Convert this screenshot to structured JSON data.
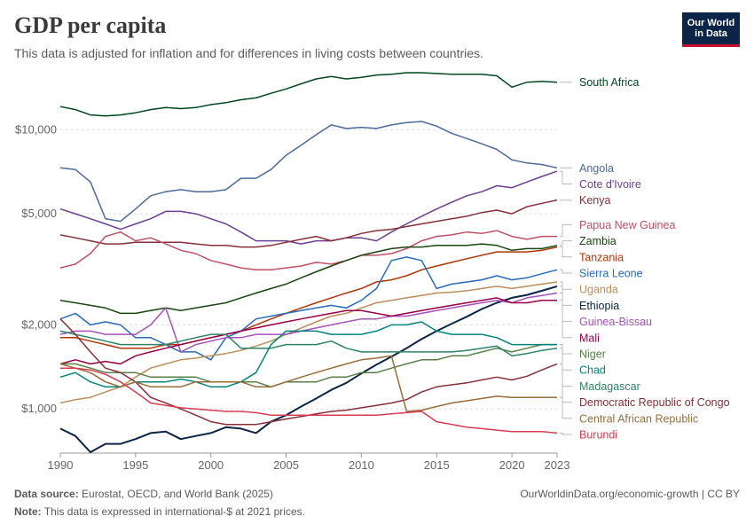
{
  "header": {
    "title": "GDP per capita",
    "subtitle": "This data is adjusted for inflation and for differences in living costs between countries.",
    "logo_line1": "Our World",
    "logo_line2": "in Data"
  },
  "footer": {
    "source_label": "Data source:",
    "source_text": "Eurostat, OECD, and World Bank (2025)",
    "note_label": "Note:",
    "note_text": "This data is expressed in international-$ at 2021 prices.",
    "credit": "OurWorldinData.org/economic-growth | CC BY"
  },
  "chart_data": {
    "type": "line",
    "title": "GDP per capita",
    "y_scale": "log",
    "ylim": [
      700,
      16000
    ],
    "xlim": [
      1990,
      2023
    ],
    "y_ticks": [
      1000,
      2000,
      5000,
      10000
    ],
    "y_tick_labels": [
      "$1,000",
      "$2,000",
      "$5,000",
      "$10,000"
    ],
    "x_ticks": [
      1990,
      1995,
      2000,
      2005,
      2010,
      2015,
      2020,
      2023
    ],
    "x_tick_labels": [
      "1990",
      "1995",
      "2000",
      "2005",
      "2010",
      "2015",
      "2020",
      "2023"
    ],
    "grid": "horizontal-dashed",
    "legend": "right-labels",
    "x": [
      1990,
      1991,
      1992,
      1993,
      1994,
      1995,
      1996,
      1997,
      1998,
      1999,
      2000,
      2001,
      2002,
      2003,
      2004,
      2005,
      2006,
      2007,
      2008,
      2009,
      2010,
      2011,
      2012,
      2013,
      2014,
      2015,
      2016,
      2017,
      2018,
      2019,
      2020,
      2021,
      2022,
      2023
    ],
    "series": [
      {
        "name": "South Africa",
        "color": "#00471f",
        "values": [
          12100,
          11800,
          11300,
          11200,
          11300,
          11500,
          11800,
          12000,
          11900,
          12000,
          12300,
          12500,
          12800,
          13000,
          13500,
          14000,
          14600,
          15200,
          15500,
          15200,
          15400,
          15700,
          15800,
          16000,
          16000,
          15900,
          15800,
          15800,
          15800,
          15600,
          14200,
          14800,
          14900,
          14800
        ]
      },
      {
        "name": "Angola",
        "color": "#4c6a9c",
        "values": [
          7300,
          7200,
          6500,
          4800,
          4700,
          5200,
          5800,
          6000,
          6100,
          6000,
          6000,
          6100,
          6700,
          6700,
          7200,
          8100,
          8800,
          9600,
          10400,
          10100,
          10200,
          10100,
          10400,
          10600,
          10700,
          10300,
          9700,
          9300,
          8900,
          8500,
          7800,
          7600,
          7500,
          7300
        ]
      },
      {
        "name": "Cote d'Ivoire",
        "color": "#6d3e91",
        "values": [
          5200,
          5000,
          4800,
          4600,
          4400,
          4600,
          4800,
          5100,
          5100,
          5000,
          4800,
          4600,
          4300,
          4000,
          4000,
          4000,
          3900,
          4000,
          4000,
          4100,
          4100,
          4000,
          4300,
          4600,
          4900,
          5200,
          5500,
          5800,
          6000,
          6300,
          6200,
          6500,
          6800,
          7100
        ]
      },
      {
        "name": "Kenya",
        "color": "#883039",
        "values": [
          4200,
          4100,
          4000,
          3900,
          3900,
          3950,
          3950,
          3950,
          3950,
          3900,
          3850,
          3850,
          3800,
          3800,
          3850,
          3950,
          4050,
          4150,
          4000,
          4100,
          4250,
          4350,
          4400,
          4500,
          4600,
          4700,
          4800,
          4900,
          5050,
          5150,
          5000,
          5300,
          5450,
          5600
        ]
      },
      {
        "name": "Papua New Guinea",
        "color": "#c15065",
        "values": [
          3200,
          3300,
          3600,
          4150,
          4300,
          4000,
          4100,
          3900,
          3700,
          3600,
          3400,
          3300,
          3200,
          3150,
          3150,
          3200,
          3250,
          3350,
          3300,
          3400,
          3550,
          3550,
          3600,
          3750,
          4000,
          4150,
          4200,
          4300,
          4250,
          4350,
          4150,
          4050,
          4150,
          4150
        ]
      },
      {
        "name": "Zambia",
        "color": "#18470f",
        "values": [
          2450,
          2400,
          2350,
          2300,
          2200,
          2200,
          2250,
          2300,
          2250,
          2300,
          2350,
          2400,
          2500,
          2600,
          2700,
          2800,
          2950,
          3100,
          3250,
          3400,
          3550,
          3650,
          3750,
          3800,
          3800,
          3850,
          3850,
          3850,
          3900,
          3850,
          3700,
          3750,
          3750,
          3850
        ]
      },
      {
        "name": "Tanzania",
        "color": "#b13507",
        "values": [
          1800,
          1800,
          1750,
          1700,
          1650,
          1650,
          1650,
          1700,
          1700,
          1750,
          1800,
          1850,
          1900,
          2000,
          2100,
          2200,
          2300,
          2400,
          2500,
          2600,
          2700,
          2850,
          2900,
          3000,
          3150,
          3250,
          3350,
          3450,
          3550,
          3650,
          3650,
          3650,
          3700,
          3800
        ]
      },
      {
        "name": "Sierra Leone",
        "color": "#286bbb",
        "values": [
          2100,
          2200,
          2000,
          2050,
          2000,
          1800,
          1800,
          1700,
          1600,
          1600,
          1500,
          1800,
          1900,
          2100,
          2150,
          2200,
          2250,
          2300,
          2350,
          2300,
          2450,
          2700,
          3400,
          3500,
          3400,
          2700,
          2800,
          2850,
          2900,
          3000,
          2900,
          2950,
          3050,
          3150
        ]
      },
      {
        "name": "Uganda",
        "color": "#bc8e5a",
        "values": [
          1050,
          1080,
          1100,
          1150,
          1200,
          1300,
          1400,
          1450,
          1500,
          1520,
          1550,
          1580,
          1620,
          1680,
          1750,
          1850,
          1950,
          2050,
          2150,
          2200,
          2300,
          2400,
          2450,
          2500,
          2550,
          2600,
          2620,
          2650,
          2700,
          2750,
          2700,
          2750,
          2800,
          2850
        ]
      },
      {
        "name": "Ethiopia",
        "color": "#0b2447",
        "values": [
          850,
          800,
          700,
          750,
          750,
          780,
          820,
          830,
          780,
          800,
          820,
          860,
          850,
          820,
          900,
          950,
          1020,
          1090,
          1170,
          1240,
          1340,
          1440,
          1540,
          1650,
          1780,
          1900,
          2020,
          2140,
          2280,
          2400,
          2500,
          2560,
          2650,
          2750
        ]
      },
      {
        "name": "Guinea-Bissau",
        "color": "#a652ba",
        "values": [
          1850,
          1900,
          1900,
          1850,
          1850,
          1850,
          2000,
          2300,
          1600,
          1700,
          1750,
          1800,
          1800,
          1850,
          1850,
          1850,
          1900,
          1950,
          2000,
          2050,
          2100,
          2100,
          2150,
          2150,
          2200,
          2250,
          2300,
          2350,
          2400,
          2450,
          2400,
          2500,
          2550,
          2600
        ]
      },
      {
        "name": "Mali",
        "color": "#970046",
        "values": [
          1450,
          1500,
          1450,
          1480,
          1450,
          1550,
          1600,
          1650,
          1700,
          1750,
          1800,
          1850,
          1900,
          1950,
          2000,
          2050,
          2100,
          2150,
          2200,
          2250,
          2250,
          2200,
          2150,
          2200,
          2250,
          2300,
          2350,
          2400,
          2450,
          2500,
          2400,
          2400,
          2450,
          2450
        ]
      },
      {
        "name": "Niger",
        "color": "#578145",
        "values": [
          1450,
          1450,
          1400,
          1350,
          1350,
          1350,
          1300,
          1300,
          1300,
          1300,
          1250,
          1250,
          1250,
          1250,
          1200,
          1250,
          1250,
          1250,
          1300,
          1300,
          1350,
          1350,
          1400,
          1450,
          1500,
          1500,
          1550,
          1550,
          1600,
          1650,
          1600,
          1650,
          1700,
          1700
        ]
      },
      {
        "name": "Chad",
        "color": "#00847e",
        "values": [
          1300,
          1350,
          1250,
          1200,
          1200,
          1250,
          1250,
          1250,
          1280,
          1250,
          1200,
          1200,
          1250,
          1350,
          1700,
          1900,
          1900,
          1900,
          1850,
          1850,
          1850,
          1900,
          2000,
          2000,
          2050,
          1900,
          1850,
          1850,
          1850,
          1800,
          1700,
          1700,
          1700,
          1700
        ]
      },
      {
        "name": "Madagascar",
        "color": "#2c8465",
        "values": [
          1900,
          1850,
          1800,
          1750,
          1700,
          1700,
          1700,
          1700,
          1750,
          1800,
          1850,
          1850,
          1650,
          1650,
          1650,
          1700,
          1700,
          1700,
          1750,
          1650,
          1600,
          1600,
          1600,
          1600,
          1600,
          1600,
          1600,
          1620,
          1650,
          1680,
          1550,
          1580,
          1620,
          1650
        ]
      },
      {
        "name": "Democratic Republic of Congo",
        "color": "#883039",
        "values": [
          2100,
          1850,
          1600,
          1400,
          1350,
          1250,
          1100,
          1050,
          1000,
          950,
          900,
          880,
          880,
          880,
          900,
          920,
          940,
          960,
          980,
          990,
          1010,
          1030,
          1050,
          1080,
          1150,
          1200,
          1220,
          1240,
          1270,
          1300,
          1270,
          1310,
          1380,
          1450
        ]
      },
      {
        "name": "Central African Republic",
        "color": "#996d39",
        "values": [
          1450,
          1400,
          1350,
          1250,
          1200,
          1250,
          1200,
          1200,
          1200,
          1250,
          1250,
          1250,
          1250,
          1200,
          1200,
          1250,
          1300,
          1350,
          1400,
          1450,
          1500,
          1520,
          1550,
          980,
          990,
          1020,
          1050,
          1070,
          1090,
          1110,
          1100,
          1100,
          1100,
          1100
        ]
      },
      {
        "name": "Burundi",
        "color": "#d73c50",
        "values": [
          1400,
          1400,
          1380,
          1330,
          1250,
          1150,
          1050,
          1030,
          1010,
          1000,
          990,
          980,
          980,
          970,
          950,
          950,
          950,
          950,
          950,
          950,
          950,
          950,
          960,
          970,
          980,
          900,
          880,
          860,
          850,
          840,
          830,
          830,
          830,
          820
        ]
      }
    ]
  }
}
